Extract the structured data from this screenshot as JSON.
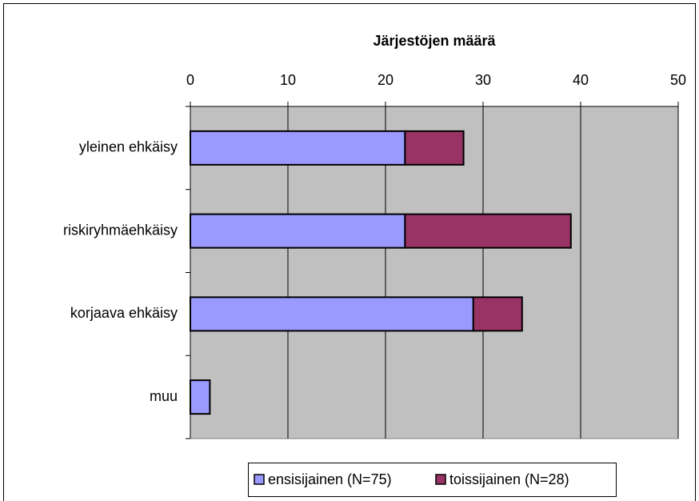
{
  "chart_data": {
    "type": "bar",
    "orientation": "horizontal",
    "stacked": true,
    "title": "Järjestöjen määrä",
    "categories": [
      "yleinen ehkäisy",
      "riskiryhmäehkäisy",
      "korjaava ehkäisy",
      "muu"
    ],
    "series": [
      {
        "name": "ensisijainen (N=75)",
        "color": "#9999ff",
        "values": [
          22,
          22,
          29,
          2
        ]
      },
      {
        "name": "toissijainen (N=28)",
        "color": "#993366",
        "values": [
          6,
          17,
          5,
          0
        ]
      }
    ],
    "xlim": [
      0,
      50
    ],
    "xticks": [
      0,
      10,
      20,
      30,
      40,
      50
    ],
    "grid": true,
    "legend": "bottom"
  }
}
